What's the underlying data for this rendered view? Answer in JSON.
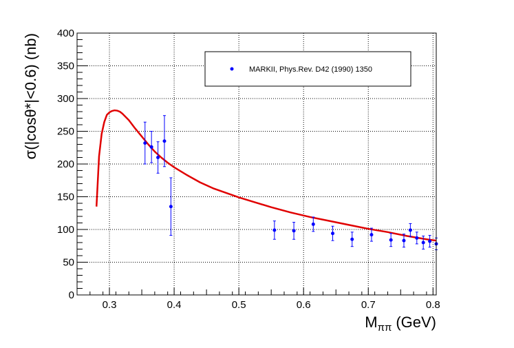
{
  "chart_data": {
    "type": "scatter",
    "xlabel": "M",
    "xlabel_sub": "ππ",
    "xlabel_unit": "(GeV)",
    "ylabel": "σ(|cosθ*|<0.6) (nb)",
    "xlim": [
      0.25,
      0.805
    ],
    "ylim": [
      0,
      400
    ],
    "grid": true,
    "x_ticks": [
      {
        "value": 0.3,
        "label": "0.3"
      },
      {
        "value": 0.4,
        "label": "0.4"
      },
      {
        "value": 0.5,
        "label": "0.5"
      },
      {
        "value": 0.6,
        "label": "0.6"
      },
      {
        "value": 0.7,
        "label": "0.7"
      },
      {
        "value": 0.8,
        "label": "0.8"
      }
    ],
    "y_ticks": [
      {
        "value": 0,
        "label": "0"
      },
      {
        "value": 50,
        "label": "50"
      },
      {
        "value": 100,
        "label": "100"
      },
      {
        "value": 150,
        "label": "150"
      },
      {
        "value": 200,
        "label": "200"
      },
      {
        "value": 250,
        "label": "250"
      },
      {
        "value": 300,
        "label": "300"
      },
      {
        "value": 350,
        "label": "350"
      },
      {
        "value": 400,
        "label": "400"
      }
    ],
    "legend": {
      "position": "top-right",
      "entries": [
        {
          "label": "MARKII, Phys.Rev. D42 (1990) 1350",
          "marker": "dot",
          "color": "#0000ff"
        }
      ]
    },
    "series": [
      {
        "name": "MARKII, Phys.Rev. D42 (1990) 1350",
        "kind": "points_with_errors",
        "color": "#0000ff",
        "points": [
          {
            "x": 0.355,
            "y": 232,
            "err": 32
          },
          {
            "x": 0.365,
            "y": 226,
            "err": 24
          },
          {
            "x": 0.375,
            "y": 210,
            "err": 24
          },
          {
            "x": 0.385,
            "y": 235,
            "err": 39
          },
          {
            "x": 0.395,
            "y": 135,
            "err": 44
          },
          {
            "x": 0.555,
            "y": 99,
            "err": 14
          },
          {
            "x": 0.585,
            "y": 98,
            "err": 13
          },
          {
            "x": 0.615,
            "y": 108,
            "err": 11
          },
          {
            "x": 0.645,
            "y": 94,
            "err": 11
          },
          {
            "x": 0.675,
            "y": 85,
            "err": 11
          },
          {
            "x": 0.705,
            "y": 92,
            "err": 10
          },
          {
            "x": 0.735,
            "y": 84,
            "err": 10
          },
          {
            "x": 0.755,
            "y": 83,
            "err": 10
          },
          {
            "x": 0.765,
            "y": 99,
            "err": 10
          },
          {
            "x": 0.775,
            "y": 87,
            "err": 9
          },
          {
            "x": 0.785,
            "y": 80,
            "err": 10
          },
          {
            "x": 0.795,
            "y": 82,
            "err": 9
          },
          {
            "x": 0.805,
            "y": 78,
            "err": 9
          }
        ]
      },
      {
        "name": "model curve",
        "kind": "line",
        "color": "#e00000",
        "x": [
          0.28,
          0.284,
          0.288,
          0.292,
          0.296,
          0.3,
          0.304,
          0.308,
          0.312,
          0.316,
          0.32,
          0.33,
          0.34,
          0.35,
          0.36,
          0.37,
          0.38,
          0.39,
          0.4,
          0.42,
          0.44,
          0.46,
          0.48,
          0.5,
          0.52,
          0.55,
          0.58,
          0.61,
          0.64,
          0.67,
          0.7,
          0.73,
          0.76,
          0.79,
          0.805
        ],
        "y": [
          135,
          212,
          246,
          264,
          275,
          279,
          281,
          282,
          281.5,
          280,
          277,
          267,
          254,
          242,
          230,
          219,
          210,
          202,
          195,
          183,
          172,
          163,
          156,
          149,
          143,
          134,
          126,
          119,
          113,
          107,
          101,
          96,
          90,
          85,
          83
        ]
      }
    ]
  }
}
